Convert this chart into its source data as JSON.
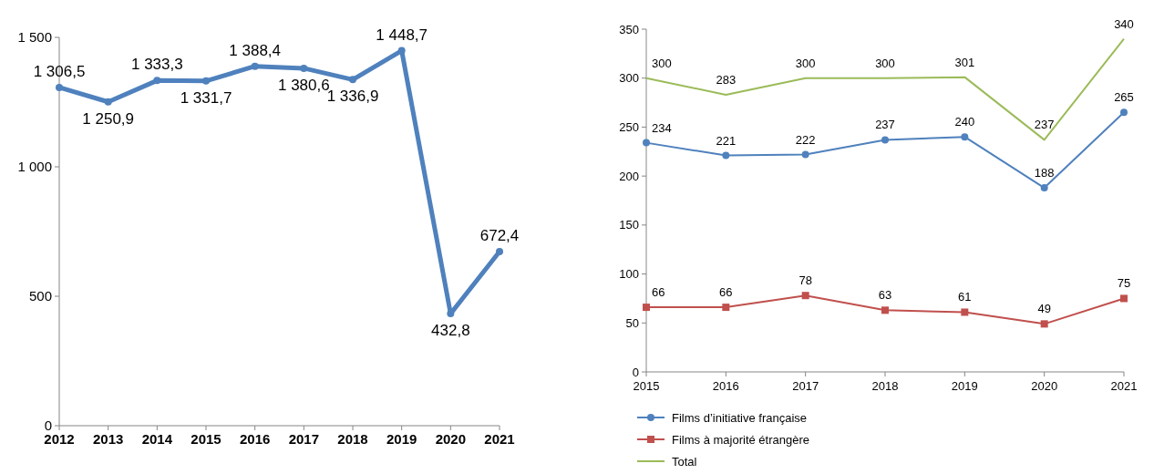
{
  "chart_data": [
    {
      "type": "line",
      "categories": [
        "2012",
        "2013",
        "2014",
        "2015",
        "2016",
        "2017",
        "2018",
        "2019",
        "2020",
        "2021"
      ],
      "series": [
        {
          "color": "#4f81bd",
          "values": [
            1306.5,
            1250.9,
            1333.3,
            1331.7,
            1388.4,
            1380.6,
            1336.9,
            1448.7,
            432.8,
            672.4
          ],
          "value_labels": [
            "1 306,5",
            "1 250,9",
            "1 333,3",
            "1 331,7",
            "1 388,4",
            "1 380,6",
            "1 336,9",
            "1 448,7",
            "432,8",
            "672,4"
          ]
        }
      ],
      "ylim": [
        0,
        1500
      ],
      "yticks": [
        {
          "value": 0,
          "label": "0"
        },
        {
          "value": 500,
          "label": "500"
        },
        {
          "value": 1000,
          "label": "1 000"
        },
        {
          "value": 1500,
          "label": "1 500"
        }
      ],
      "grid": false,
      "legend": false,
      "marker": "circle"
    },
    {
      "type": "line",
      "categories": [
        "2015",
        "2016",
        "2017",
        "2018",
        "2019",
        "2020",
        "2021"
      ],
      "series": [
        {
          "name": "Films d’initiative française",
          "color": "#4f81bd",
          "marker": "circle",
          "values": [
            234,
            221,
            222,
            237,
            240,
            188,
            265
          ]
        },
        {
          "name": "Films à majorité étrangère",
          "color": "#c0504d",
          "marker": "square",
          "values": [
            66,
            66,
            78,
            63,
            61,
            49,
            75
          ]
        },
        {
          "name": "Total",
          "color": "#9bbb59",
          "marker": "none",
          "values": [
            300,
            283,
            300,
            300,
            301,
            237,
            340
          ]
        }
      ],
      "ylim": [
        0,
        350
      ],
      "yticks": [
        0,
        50,
        100,
        150,
        200,
        250,
        300,
        350
      ],
      "grid": false,
      "legend": "bottom",
      "data_labels": true
    }
  ]
}
